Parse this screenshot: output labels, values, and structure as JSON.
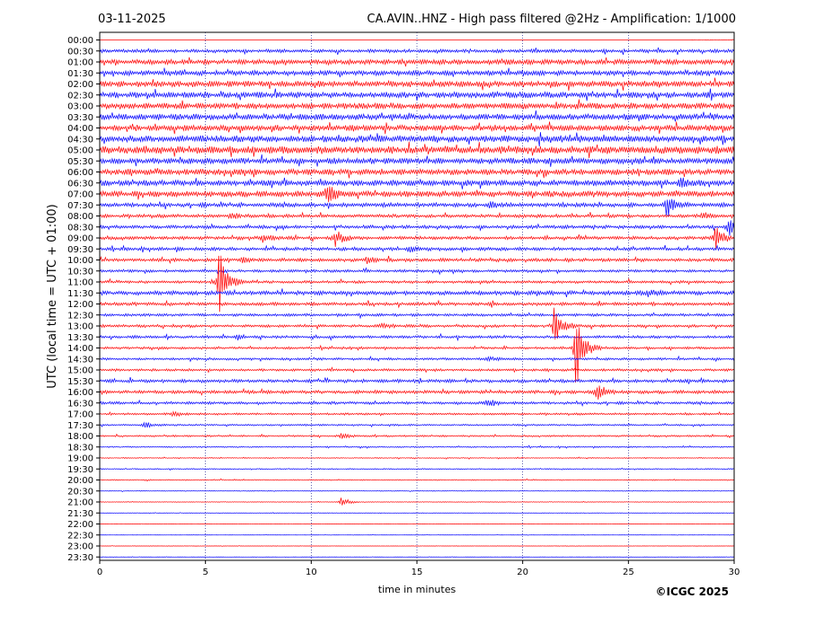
{
  "header": {
    "date": "03-11-2025",
    "title": "CA.AVIN..HNZ - High pass filtered @2Hz - Amplification: 1/1000"
  },
  "copyright": "©ICGC 2025",
  "chart_data": {
    "type": "seismogram",
    "title": "CA.AVIN..HNZ - High pass filtered @2Hz - Amplification: 1/1000",
    "date": "03-11-2025",
    "xlabel": "time in minutes",
    "ylabel": "UTC (local time = UTC + 01:00)",
    "xlim": [
      0,
      30
    ],
    "xticks": [
      0,
      5,
      10,
      15,
      20,
      25,
      30
    ],
    "grid": "vertical dotted at every 5 minutes",
    "row_labels": [
      "00:00",
      "00:30",
      "01:00",
      "01:30",
      "02:00",
      "02:30",
      "03:00",
      "03:30",
      "04:00",
      "04:30",
      "05:00",
      "05:30",
      "06:00",
      "06:30",
      "07:00",
      "07:30",
      "08:00",
      "08:30",
      "09:00",
      "09:30",
      "10:00",
      "10:30",
      "11:00",
      "11:30",
      "12:00",
      "12:30",
      "13:00",
      "13:30",
      "14:00",
      "14:30",
      "15:00",
      "15:30",
      "16:00",
      "16:30",
      "17:00",
      "17:30",
      "18:00",
      "18:30",
      "19:00",
      "19:30",
      "20:00",
      "20:30",
      "21:00",
      "21:30",
      "22:00",
      "22:30",
      "23:00",
      "23:30"
    ],
    "trace_colors": [
      "#ff0000",
      "#0000ff"
    ],
    "noise_levels": [
      0.3,
      2,
      3,
      3,
      3.5,
      3.5,
      3.5,
      3.5,
      3.5,
      4,
      4.5,
      3.5,
      3.5,
      3.5,
      3.5,
      2.5,
      2,
      2,
      2,
      2,
      2,
      1.6,
      1.6,
      2.5,
      2,
      1.6,
      1.6,
      1.6,
      1.4,
      1.4,
      1.4,
      2,
      2,
      1.6,
      1.2,
      1,
      1,
      0.8,
      0.6,
      0.6,
      0.6,
      0.4,
      0.4,
      0.3,
      0.2,
      0.2,
      0.2,
      0.2
    ],
    "events": [
      {
        "row": "06:30",
        "minute": 27.5,
        "amplitude": 5
      },
      {
        "row": "07:00",
        "minute": 10.7,
        "amplitude": 11
      },
      {
        "row": "07:30",
        "minute": 18.5,
        "amplitude": 5
      },
      {
        "row": "07:30",
        "minute": 26.8,
        "amplitude": 14
      },
      {
        "row": "08:00",
        "minute": 6.2,
        "amplitude": 4
      },
      {
        "row": "08:00",
        "minute": 28.5,
        "amplitude": 4
      },
      {
        "row": "08:30",
        "minute": 29.7,
        "amplitude": 13
      },
      {
        "row": "09:00",
        "minute": 11.1,
        "amplitude": 12
      },
      {
        "row": "09:00",
        "minute": 7.7,
        "amplitude": 4
      },
      {
        "row": "09:00",
        "minute": 29.1,
        "amplitude": 14
      },
      {
        "row": "09:30",
        "minute": 14.6,
        "amplitude": 3
      },
      {
        "row": "10:00",
        "minute": 6.7,
        "amplitude": 3
      },
      {
        "row": "10:00",
        "minute": 12.6,
        "amplitude": 4
      },
      {
        "row": "11:00",
        "minute": 5.6,
        "amplitude": 45
      },
      {
        "row": "11:30",
        "minute": 25.9,
        "amplitude": 4
      },
      {
        "row": "13:00",
        "minute": 21.5,
        "amplitude": 26
      },
      {
        "row": "13:00",
        "minute": 13.3,
        "amplitude": 3
      },
      {
        "row": "13:30",
        "minute": 6.5,
        "amplitude": 3
      },
      {
        "row": "14:00",
        "minute": 22.5,
        "amplitude": 50
      },
      {
        "row": "14:30",
        "minute": 18.3,
        "amplitude": 3
      },
      {
        "row": "16:00",
        "minute": 23.5,
        "amplitude": 12
      },
      {
        "row": "16:30",
        "minute": 18.3,
        "amplitude": 5
      },
      {
        "row": "17:00",
        "minute": 3.5,
        "amplitude": 3
      },
      {
        "row": "17:30",
        "minute": 2.1,
        "amplitude": 4
      },
      {
        "row": "18:00",
        "minute": 11.4,
        "amplitude": 3
      },
      {
        "row": "21:00",
        "minute": 11.4,
        "amplitude": 6
      }
    ]
  }
}
